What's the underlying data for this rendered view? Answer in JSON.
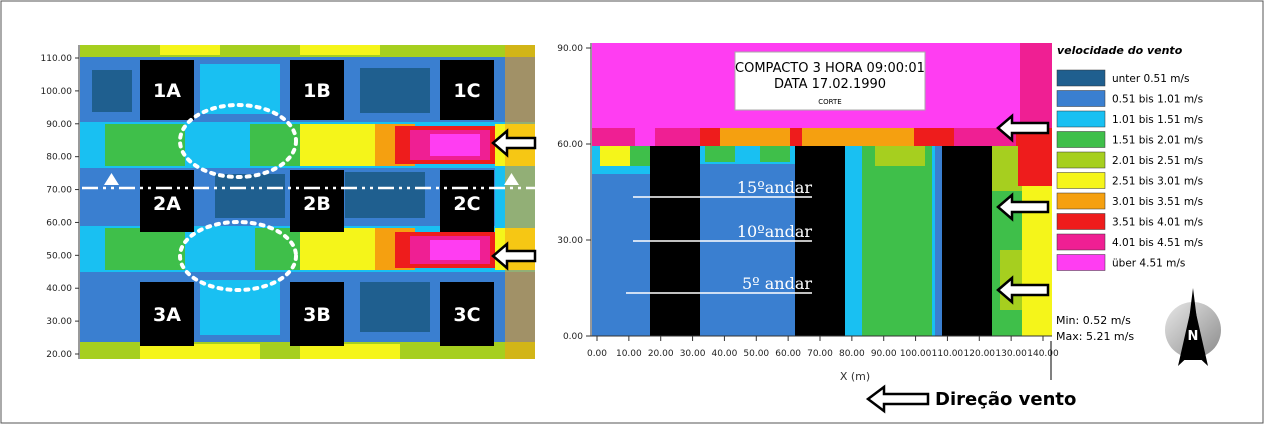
{
  "chart_data": [
    {
      "type": "heatmap",
      "view": "plan",
      "y_ticks": [
        "110.00",
        "100.00",
        "90.00",
        "80.00",
        "70.00",
        "60.00",
        "50.00",
        "40.00",
        "30.00",
        "20.00"
      ],
      "buildings": [
        "1A",
        "1B",
        "1C",
        "2A",
        "2B",
        "2C",
        "3A",
        "3B",
        "3C"
      ]
    },
    {
      "type": "heatmap",
      "view": "section",
      "info_box": {
        "line1": "COMPACTO 3   HORA 09:00:01",
        "line2": "DATA 17.02.1990",
        "line3": "CORTE"
      },
      "y_ticks": [
        "90.00",
        "60.00",
        "30.00",
        "0.00"
      ],
      "x_ticks": [
        "0.00",
        "10.00",
        "20.00",
        "30.00",
        "40.00",
        "50.00",
        "60.00",
        "70.00",
        "80.00",
        "90.00",
        "100.00",
        "110.00",
        "120.00",
        "130.00",
        "140.00"
      ],
      "xlabel": "X (m)",
      "floor_labels": [
        "15ºandar",
        "10ºandar",
        "5º andar"
      ],
      "legend": {
        "title": "velocidade do vento",
        "items": [
          {
            "label": "unter 0.51 m/s",
            "color": "#1f5f8f"
          },
          {
            "label": "0.51 bis 1.01 m/s",
            "color": "#3a7fd0"
          },
          {
            "label": "1.01 bis 1.51 m/s",
            "color": "#19c0f2"
          },
          {
            "label": "1.51 bis 2.01 m/s",
            "color": "#3fbf4a"
          },
          {
            "label": "2.01 bis 2.51 m/s",
            "color": "#a6cf1f"
          },
          {
            "label": "2.51 bis 3.01 m/s",
            "color": "#f5f51a"
          },
          {
            "label": "3.01 bis 3.51 m/s",
            "color": "#f5a010"
          },
          {
            "label": "3.51 bis 4.01 m/s",
            "color": "#ee1c1c"
          },
          {
            "label": "4.01 bis 4.51 m/s",
            "color": "#ef1f93"
          },
          {
            "label": "über 4.51 m/s",
            "color": "#ff3df2"
          }
        ]
      },
      "stats": {
        "min": "Min: 0.52 m/s",
        "max": "Max: 5.21 m/s"
      }
    }
  ],
  "wind_direction_label": "Direção vento"
}
